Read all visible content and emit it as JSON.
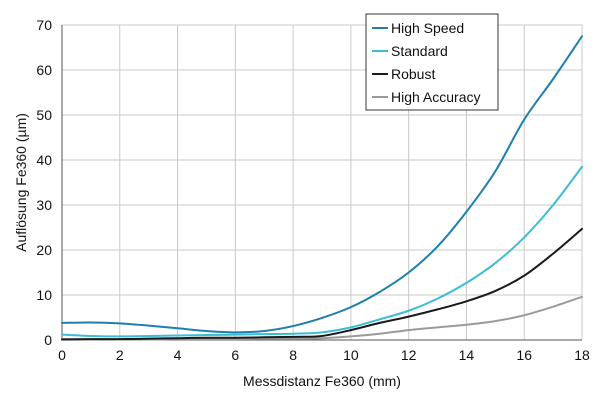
{
  "chart_data": {
    "type": "line",
    "title": "",
    "xlabel": "Messdistanz Fe360 (mm)",
    "ylabel": "Auflösung Fe360 (µm)",
    "xlim": [
      0,
      18
    ],
    "ylim": [
      0,
      70
    ],
    "xticks": [
      0,
      2,
      4,
      6,
      8,
      10,
      12,
      14,
      16,
      18
    ],
    "yticks": [
      0,
      10,
      20,
      30,
      40,
      50,
      60,
      70
    ],
    "grid": true,
    "legend_position": "top-right",
    "series": [
      {
        "name": "High Speed",
        "color": "#1c7fad",
        "x": [
          0,
          1,
          2,
          3,
          4,
          5,
          6,
          7,
          8,
          9,
          10,
          11,
          12,
          13,
          14,
          15,
          16,
          17,
          18
        ],
        "y": [
          3.8,
          3.9,
          3.7,
          3.2,
          2.6,
          2.0,
          1.7,
          2.0,
          3.1,
          4.9,
          7.3,
          10.7,
          15.0,
          20.8,
          28.5,
          37.5,
          49.0,
          58.0,
          67.5
        ]
      },
      {
        "name": "Standard",
        "color": "#3bbdd4",
        "x": [
          0,
          1,
          2,
          3,
          4,
          5,
          6,
          7,
          8,
          9,
          10,
          11,
          12,
          13,
          14,
          15,
          16,
          17,
          18
        ],
        "y": [
          1.2,
          0.9,
          0.8,
          0.9,
          1.0,
          1.1,
          1.2,
          1.3,
          1.4,
          1.7,
          2.8,
          4.6,
          6.5,
          9.2,
          12.7,
          17.1,
          22.8,
          30.0,
          38.5
        ]
      },
      {
        "name": "Robust",
        "color": "#1a1a1a",
        "x": [
          0,
          1,
          2,
          3,
          4,
          5,
          6,
          7,
          8,
          9,
          10,
          11,
          12,
          13,
          14,
          15,
          16,
          17,
          18
        ],
        "y": [
          0.1,
          0.2,
          0.2,
          0.3,
          0.4,
          0.5,
          0.5,
          0.6,
          0.7,
          0.9,
          2.2,
          3.8,
          5.2,
          6.8,
          8.6,
          10.9,
          14.3,
          19.2,
          24.7
        ]
      },
      {
        "name": "High Accuracy",
        "color": "#9a9a9a",
        "x": [
          0,
          1,
          2,
          3,
          4,
          5,
          6,
          7,
          8,
          9,
          10,
          11,
          12,
          13,
          14,
          15,
          16,
          17,
          18
        ],
        "y": [
          0.2,
          0.1,
          0.1,
          0.1,
          0.2,
          0.2,
          0.2,
          0.3,
          0.3,
          0.4,
          0.8,
          1.4,
          2.2,
          2.8,
          3.4,
          4.2,
          5.5,
          7.4,
          9.6
        ]
      }
    ]
  }
}
